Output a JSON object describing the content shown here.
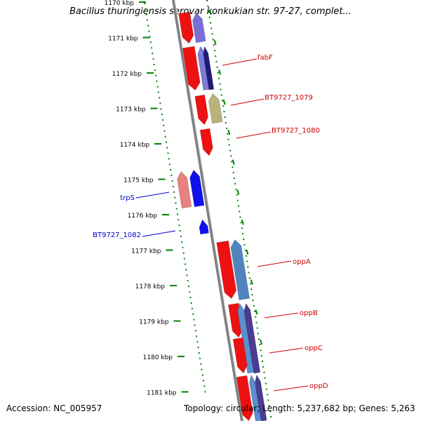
{
  "title": "Bacillus thuringiensis serovar konkukian str. 97-27, complet...",
  "footer": {
    "accession": "Accession: NC_005957",
    "summary": "Topology: circular; Length: 5,237,682 bp; Genes: 5,263"
  },
  "axis": {
    "unit": "kbp",
    "ticks": [
      "1170 kbp",
      "1171 kbp",
      "1172 kbp",
      "1173 kbp",
      "1174 kbp",
      "1175 kbp",
      "1176 kbp",
      "1177 kbp",
      "1178 kbp",
      "1179 kbp",
      "1180 kbp",
      "1181 kbp"
    ]
  },
  "colors": {
    "forward_label": "#cc0000",
    "reverse_label": "#0000cc",
    "ruler": "#008000",
    "backbone": "#808080"
  },
  "gene_labels": [
    {
      "name": "fabF",
      "strand": "forward"
    },
    {
      "name": "BT9727_1079",
      "strand": "forward"
    },
    {
      "name": "BT9727_1080",
      "strand": "forward"
    },
    {
      "name": "trpS",
      "strand": "reverse"
    },
    {
      "name": "BT9727_1082",
      "strand": "reverse"
    },
    {
      "name": "oppA",
      "strand": "forward"
    },
    {
      "name": "oppB",
      "strand": "forward"
    },
    {
      "name": "oppC",
      "strand": "forward"
    },
    {
      "name": "oppD",
      "strand": "forward"
    }
  ]
}
